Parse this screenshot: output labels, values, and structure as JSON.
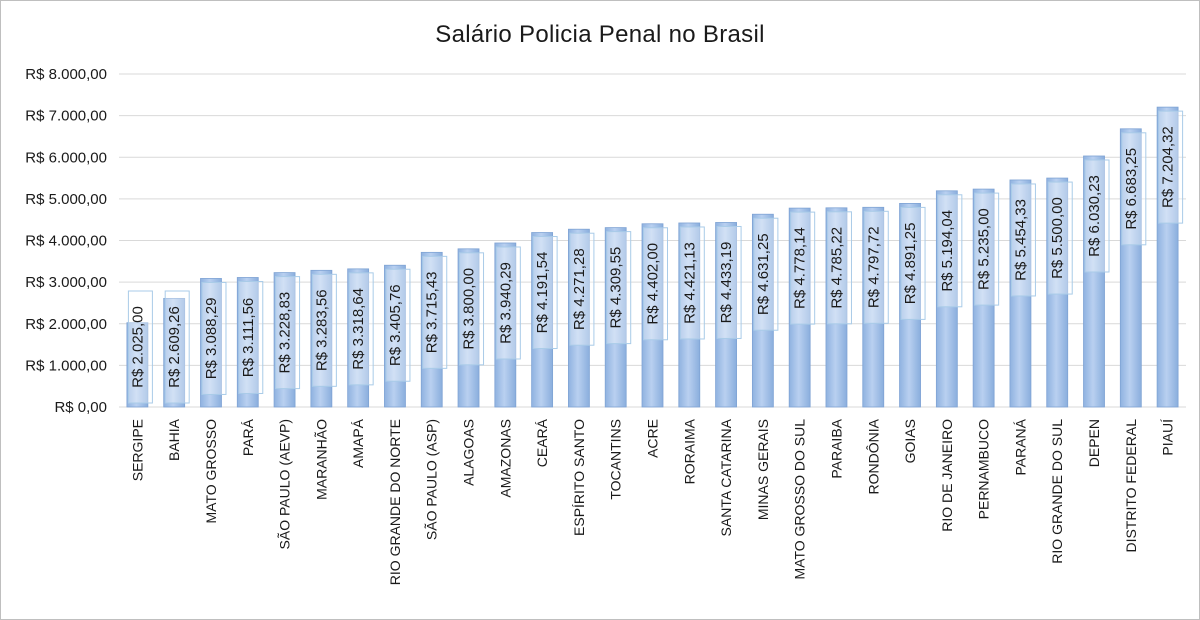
{
  "chart_data": {
    "type": "bar",
    "title": "Salário Policia Penal no Brasil",
    "xlabel": "",
    "ylabel": "",
    "ylim": [
      0,
      8000
    ],
    "ytick_step": 1000,
    "ytick_labels": [
      "R$ 0,00",
      "R$ 1.000,00",
      "R$ 2.000,00",
      "R$ 3.000,00",
      "R$ 4.000,00",
      "R$ 5.000,00",
      "R$ 6.000,00",
      "R$ 7.000,00",
      "R$ 8.000,00"
    ],
    "grid": true,
    "legend": "none",
    "bar_color": "#9dbde6",
    "categories": [
      "SERGIPE",
      "BAHIA",
      "MATO GROSSO",
      "PARÁ",
      "SÃO PAULO (AEVP)",
      "MARANHÃO",
      "AMAPÁ",
      "RIO GRANDE DO NORTE",
      "SÃO PAULO (ASP)",
      "ALAGOAS",
      "AMAZONAS",
      "CEARÁ",
      "ESPÍRITO SANTO",
      "TOCANTINS",
      "ACRE",
      "RORAIMA",
      "SANTA CATARINA",
      "MINAS GERAIS",
      "MATO GROSSO DO SUL",
      "PARAIBA",
      "RONDÔNIA",
      "GOIAS",
      "RIO DE JANEIRO",
      "PERNAMBUCO",
      "PARANÁ",
      "RIO GRANDE DO SUL",
      "DEPEN",
      "DISTRITO FEDERAL",
      "PIAUÍ"
    ],
    "values": [
      2025.0,
      2609.26,
      3088.29,
      3111.56,
      3228.83,
      3283.56,
      3318.64,
      3405.76,
      3715.43,
      3800.0,
      3940.29,
      4191.54,
      4271.28,
      4309.55,
      4402.0,
      4421.13,
      4433.19,
      4631.25,
      4778.14,
      4785.22,
      4797.72,
      4891.25,
      5194.04,
      5235.0,
      5454.33,
      5500.0,
      6030.23,
      6683.25,
      7204.32
    ],
    "data_labels": [
      "R$ 2.025,00",
      "R$ 2.609,26",
      "R$ 3.088,29",
      "R$ 3.111,56",
      "R$ 3.228,83",
      "R$ 3.283,56",
      "R$ 3.318,64",
      "R$ 3.405,76",
      "R$ 3.715,43",
      "R$ 3.800,00",
      "R$ 3.940,29",
      "R$ 4.191,54",
      "R$ 4.271,28",
      "R$ 4.309,55",
      "R$ 4.402,00",
      "R$ 4.421,13",
      "R$ 4.433,19",
      "R$ 4.631,25",
      "R$ 4.778,14",
      "R$ 4.785,22",
      "R$ 4.797,72",
      "R$ 4.891,25",
      "R$ 5.194,04",
      "R$ 5.235,00",
      "R$ 5.454,33",
      "R$ 5.500,00",
      "R$ 6.030,23",
      "R$ 6.683,25",
      "R$ 7.204,32"
    ]
  }
}
